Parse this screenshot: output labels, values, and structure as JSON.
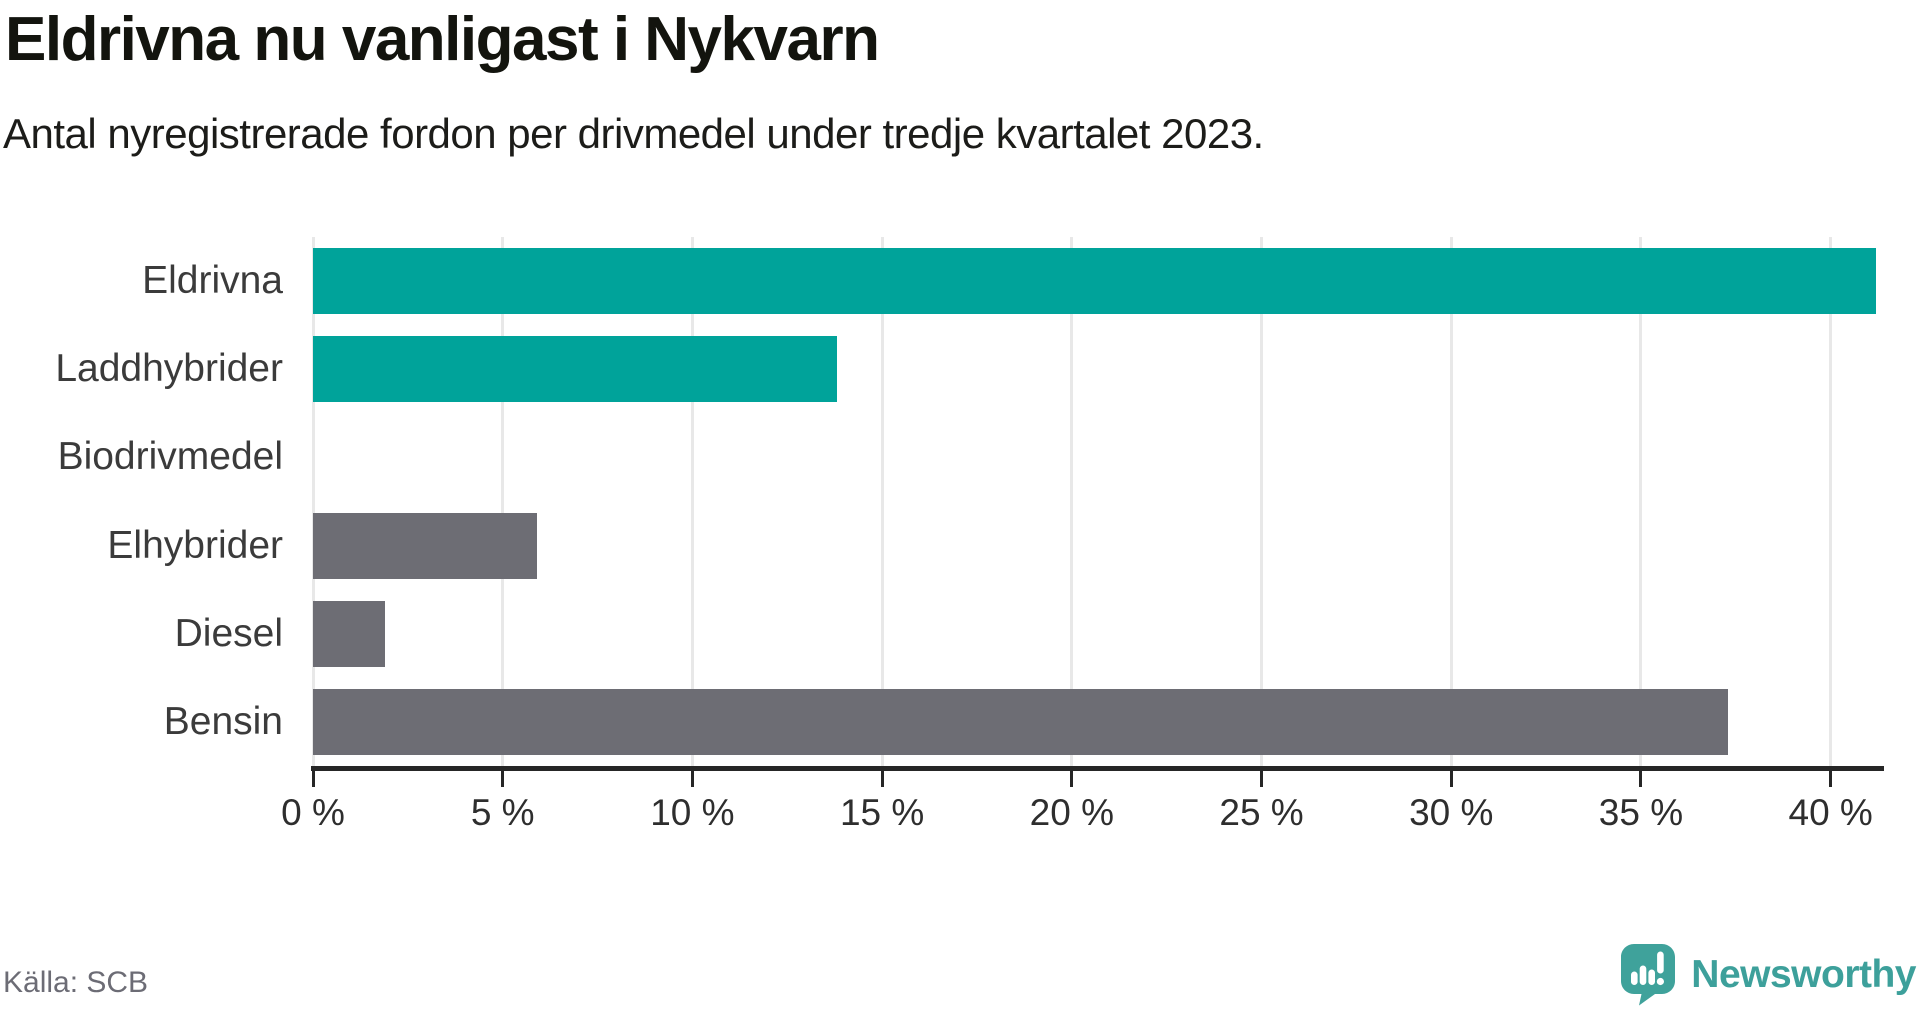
{
  "header": {
    "title": "Eldrivna nu vanligast i Nykvarn",
    "subtitle": "Antal nyregistrerade fordon per drivmedel under tredje kvartalet 2023."
  },
  "chart_data": {
    "type": "bar",
    "orientation": "horizontal",
    "title": "Eldrivna nu vanligast i Nykvarn",
    "subtitle": "Antal nyregistrerade fordon per drivmedel under tredje kvartalet 2023.",
    "categories": [
      "Eldrivna",
      "Laddhybrider",
      "Biodrivmedel",
      "Elhybrider",
      "Diesel",
      "Bensin"
    ],
    "values": [
      41.2,
      13.8,
      0,
      5.9,
      1.9,
      37.3
    ],
    "unit": "%",
    "bar_colors": [
      "#00a39a",
      "#00a39a",
      "#6d6d74",
      "#6d6d74",
      "#6d6d74",
      "#6d6d74"
    ],
    "xlabel": "",
    "ylabel": "",
    "xlim": [
      0,
      41.3
    ],
    "x_ticks": [
      0,
      5,
      10,
      15,
      20,
      25,
      30,
      35,
      40
    ],
    "x_tick_labels": [
      "0 %",
      "5 %",
      "10 %",
      "15 %",
      "20 %",
      "25 %",
      "30 %",
      "35 %",
      "40 %"
    ],
    "grid": true,
    "legend": false
  },
  "footer": {
    "source": "Källa: SCB",
    "logo_text": "Newsworthy"
  },
  "colors": {
    "accent_teal": "#00a39a",
    "bar_gray": "#6d6d74",
    "logo_teal": "#3da09b",
    "axis_line": "#262626",
    "gridline": "#e8e8e8",
    "title_text": "#13140e",
    "source_text": "#6c6c75",
    "category_label_text": "#3b3b3b"
  },
  "icons": {
    "logo_icon": "newsworthy-speech-bubble-chart-icon"
  }
}
